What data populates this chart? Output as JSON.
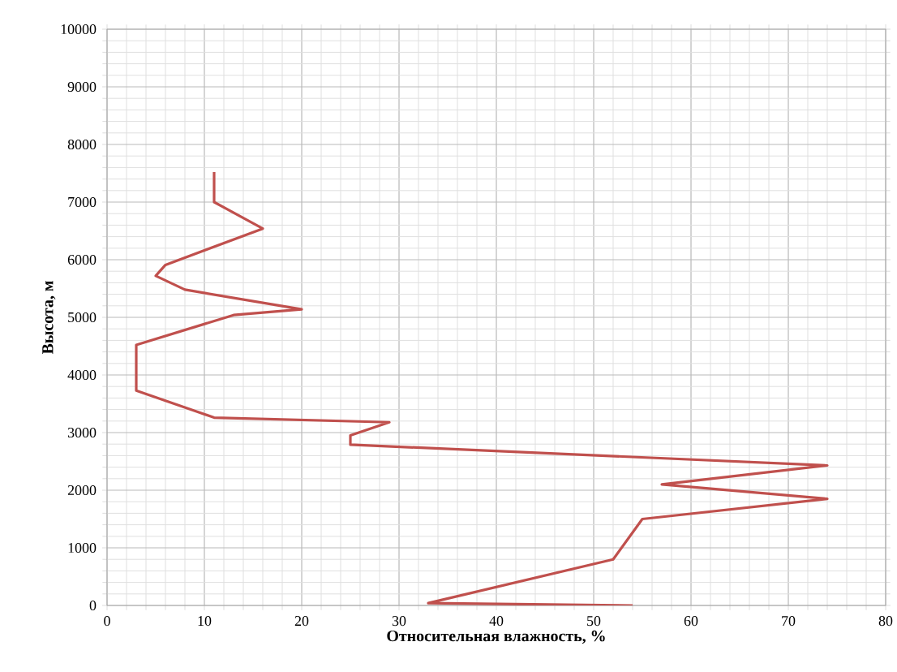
{
  "chart_data": {
    "type": "line",
    "xlabel": "Относительная влажность, %",
    "ylabel": "Высота, м",
    "x": [
      54,
      33,
      52,
      55,
      74,
      57,
      74,
      25,
      25,
      29,
      11,
      3,
      3,
      13,
      20,
      8,
      5,
      6,
      16,
      11,
      11
    ],
    "series": [
      {
        "color": "#c0504d",
        "values": [
          0,
          40,
          800,
          1500,
          1850,
          2100,
          2430,
          2790,
          2950,
          3180,
          3260,
          3730,
          4520,
          5040,
          5140,
          5480,
          5720,
          5910,
          6540,
          7000,
          7520
        ]
      }
    ],
    "xlim": [
      0,
      80
    ],
    "xticks": [
      0,
      10,
      20,
      30,
      40,
      50,
      60,
      70,
      80
    ],
    "ylim": [
      0,
      10000
    ],
    "yticks": [
      0,
      1000,
      2000,
      3000,
      4000,
      5000,
      6000,
      7000,
      8000,
      9000,
      10000
    ],
    "grid": true,
    "marker": "none",
    "line_style": "solid"
  }
}
